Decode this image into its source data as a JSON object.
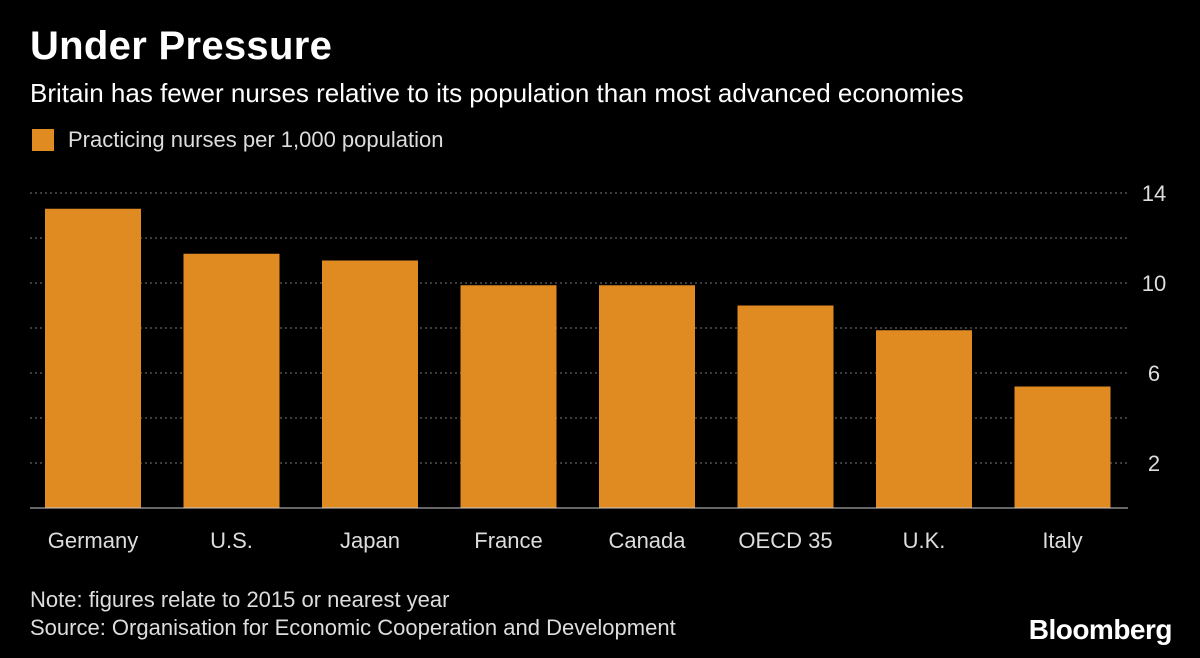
{
  "header": {
    "title": "Under Pressure",
    "subtitle": "Britain has fewer nurses relative to its population than most advanced economies"
  },
  "legend": {
    "label": "Practicing nurses per 1,000 population"
  },
  "colors": {
    "background": "#000000",
    "bar": "#e08a22",
    "grid": "#777777",
    "text": "#ffffff",
    "muted": "#dddddd"
  },
  "chart_data": {
    "type": "bar",
    "title": "Under Pressure",
    "subtitle": "Britain has fewer nurses relative to its population than most advanced economies",
    "categories": [
      "Germany",
      "U.S.",
      "Japan",
      "France",
      "Canada",
      "OECD 35",
      "U.K.",
      "Italy"
    ],
    "series": [
      {
        "name": "Practicing nurses per 1,000 population",
        "values": [
          13.3,
          11.3,
          11.0,
          9.9,
          9.9,
          9.0,
          7.9,
          5.4
        ]
      }
    ],
    "xlabel": "",
    "ylabel": "",
    "ylim": [
      0,
      14
    ],
    "yticks": [
      2,
      6,
      10,
      14
    ],
    "gridlines": [
      2,
      4,
      6,
      8,
      10,
      12,
      14
    ],
    "grid": true,
    "legend_position": "top-left",
    "axis_position": "right"
  },
  "footer": {
    "note": "Note: figures relate to 2015 or nearest year",
    "source": "Source: Organisation for Economic Cooperation and Development",
    "brand": "Bloomberg"
  }
}
